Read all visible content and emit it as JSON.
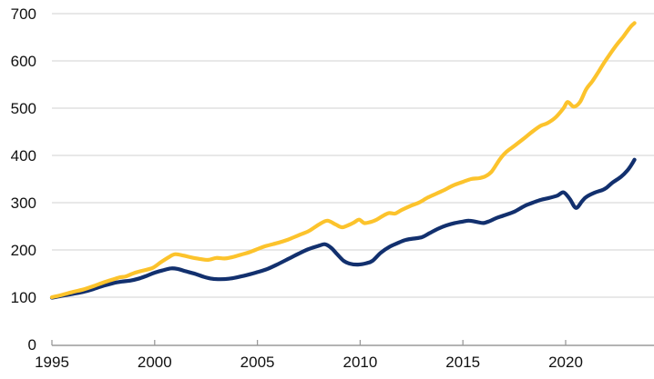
{
  "chart_data": {
    "type": "line",
    "title": "",
    "legend": "none",
    "grid": "horizontal",
    "background_color": "#ffffff",
    "gridline_color": "#d9d9d9",
    "axis_line_color": "#9a9a9a",
    "tick_label_color": "#111111",
    "x_axis": {
      "label": "",
      "range": [
        1995,
        2024.3
      ],
      "tick_years": [
        1995,
        2000,
        2005,
        2010,
        2015,
        2020
      ],
      "tick_labels": [
        "1995",
        "2000",
        "2005",
        "2010",
        "2015",
        "2020"
      ]
    },
    "y_axis": {
      "label": "",
      "range": [
        0,
        700
      ],
      "tick_values": [
        0,
        100,
        200,
        300,
        400,
        500,
        600,
        700
      ],
      "tick_labels": [
        "0",
        "100",
        "200",
        "300",
        "400",
        "500",
        "600",
        "700"
      ]
    },
    "series": [
      {
        "name": "navy-line",
        "color": "#12306e",
        "stroke_width": 4.2,
        "points": [
          [
            1995,
            99
          ],
          [
            1995.5,
            103
          ],
          [
            1996,
            107
          ],
          [
            1996.5,
            111
          ],
          [
            1997,
            117
          ],
          [
            1997.5,
            124
          ],
          [
            1998,
            130
          ],
          [
            1998.4,
            133
          ],
          [
            1998.8,
            135
          ],
          [
            1999.2,
            139
          ],
          [
            1999.6,
            145
          ],
          [
            2000,
            152
          ],
          [
            2000.4,
            157
          ],
          [
            2000.8,
            161
          ],
          [
            2001.1,
            160
          ],
          [
            2001.5,
            155
          ],
          [
            2002,
            149
          ],
          [
            2002.4,
            143
          ],
          [
            2002.8,
            139
          ],
          [
            2003.2,
            138
          ],
          [
            2003.6,
            139
          ],
          [
            2004,
            142
          ],
          [
            2004.5,
            147
          ],
          [
            2005,
            153
          ],
          [
            2005.5,
            160
          ],
          [
            2006,
            170
          ],
          [
            2006.5,
            181
          ],
          [
            2007,
            192
          ],
          [
            2007.5,
            202
          ],
          [
            2008,
            209
          ],
          [
            2008.3,
            212
          ],
          [
            2008.6,
            204
          ],
          [
            2008.9,
            190
          ],
          [
            2009.2,
            177
          ],
          [
            2009.5,
            171
          ],
          [
            2009.9,
            169
          ],
          [
            2010.3,
            172
          ],
          [
            2010.6,
            177
          ],
          [
            2011,
            194
          ],
          [
            2011.4,
            206
          ],
          [
            2011.8,
            214
          ],
          [
            2012.2,
            221
          ],
          [
            2012.6,
            224
          ],
          [
            2013,
            227
          ],
          [
            2013.4,
            236
          ],
          [
            2013.8,
            245
          ],
          [
            2014.2,
            252
          ],
          [
            2014.6,
            257
          ],
          [
            2015,
            260
          ],
          [
            2015.3,
            262
          ],
          [
            2015.7,
            259
          ],
          [
            2016,
            257
          ],
          [
            2016.3,
            261
          ],
          [
            2016.6,
            267
          ],
          [
            2017,
            273
          ],
          [
            2017.5,
            281
          ],
          [
            2018,
            293
          ],
          [
            2018.4,
            300
          ],
          [
            2018.8,
            306
          ],
          [
            2019.2,
            310
          ],
          [
            2019.6,
            315
          ],
          [
            2019.9,
            322
          ],
          [
            2020.2,
            308
          ],
          [
            2020.5,
            289
          ],
          [
            2020.8,
            303
          ],
          [
            2021,
            312
          ],
          [
            2021.4,
            321
          ],
          [
            2021.8,
            327
          ],
          [
            2022,
            332
          ],
          [
            2022.3,
            343
          ],
          [
            2022.7,
            355
          ],
          [
            2023,
            368
          ],
          [
            2023.2,
            380
          ],
          [
            2023.35,
            391
          ]
        ]
      },
      {
        "name": "gold-line",
        "color": "#fcc32c",
        "stroke_width": 4.2,
        "points": [
          [
            1995,
            100
          ],
          [
            1995.5,
            105
          ],
          [
            1996,
            111
          ],
          [
            1996.5,
            116
          ],
          [
            1997,
            123
          ],
          [
            1997.5,
            131
          ],
          [
            1998,
            138
          ],
          [
            1998.3,
            142
          ],
          [
            1998.6,
            144
          ],
          [
            1999,
            151
          ],
          [
            1999.4,
            156
          ],
          [
            1999.9,
            162
          ],
          [
            2000.3,
            174
          ],
          [
            2000.7,
            185
          ],
          [
            2001,
            191
          ],
          [
            2001.4,
            188
          ],
          [
            2001.8,
            184
          ],
          [
            2002.2,
            181
          ],
          [
            2002.6,
            179
          ],
          [
            2003,
            183
          ],
          [
            2003.4,
            182
          ],
          [
            2003.8,
            185
          ],
          [
            2004.2,
            190
          ],
          [
            2004.6,
            195
          ],
          [
            2004.9,
            200
          ],
          [
            2005.4,
            208
          ],
          [
            2006,
            215
          ],
          [
            2006.5,
            222
          ],
          [
            2007,
            231
          ],
          [
            2007.5,
            240
          ],
          [
            2008,
            254
          ],
          [
            2008.4,
            262
          ],
          [
            2008.8,
            254
          ],
          [
            2009.1,
            248
          ],
          [
            2009.4,
            252
          ],
          [
            2009.7,
            258
          ],
          [
            2009.95,
            264
          ],
          [
            2010.2,
            257
          ],
          [
            2010.5,
            259
          ],
          [
            2010.8,
            264
          ],
          [
            2011.1,
            272
          ],
          [
            2011.4,
            278
          ],
          [
            2011.7,
            277
          ],
          [
            2012,
            284
          ],
          [
            2012.5,
            294
          ],
          [
            2012.9,
            301
          ],
          [
            2013.3,
            311
          ],
          [
            2013.7,
            319
          ],
          [
            2014.1,
            327
          ],
          [
            2014.5,
            336
          ],
          [
            2015,
            344
          ],
          [
            2015.4,
            350
          ],
          [
            2015.8,
            352
          ],
          [
            2016.1,
            356
          ],
          [
            2016.4,
            366
          ],
          [
            2016.8,
            392
          ],
          [
            2017.1,
            407
          ],
          [
            2017.5,
            420
          ],
          [
            2018,
            437
          ],
          [
            2018.4,
            451
          ],
          [
            2018.8,
            463
          ],
          [
            2019.1,
            468
          ],
          [
            2019.5,
            480
          ],
          [
            2019.9,
            500
          ],
          [
            2020.1,
            513
          ],
          [
            2020.4,
            503
          ],
          [
            2020.7,
            513
          ],
          [
            2021,
            540
          ],
          [
            2021.3,
            557
          ],
          [
            2021.6,
            577
          ],
          [
            2021.9,
            598
          ],
          [
            2022.2,
            617
          ],
          [
            2022.5,
            635
          ],
          [
            2022.8,
            651
          ],
          [
            2023,
            663
          ],
          [
            2023.2,
            674
          ],
          [
            2023.35,
            680
          ]
        ]
      }
    ]
  }
}
